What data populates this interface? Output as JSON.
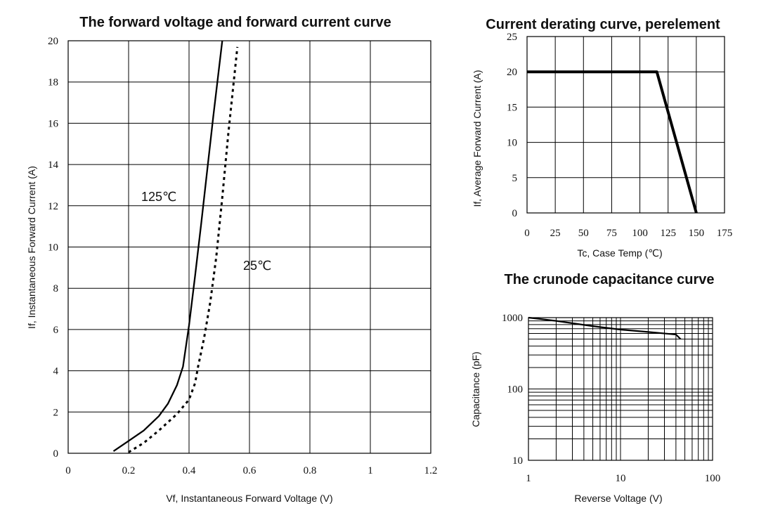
{
  "chart_data": [
    {
      "type": "line",
      "title": "The forward voltage and forward current curve",
      "xlabel": "Vf, Instantaneous Forward Voltage (V)",
      "ylabel": "If, Instantaneous Forward Current (A)",
      "xlim": [
        0,
        1.2
      ],
      "ylim": [
        0,
        20
      ],
      "x_ticks": [
        "0",
        "0.2",
        "0.4",
        "0.6",
        "0.8",
        "1",
        "1.2"
      ],
      "y_ticks": [
        "0",
        "2",
        "4",
        "6",
        "8",
        "10",
        "12",
        "14",
        "16",
        "18",
        "20"
      ],
      "grid": true,
      "annotations": [
        "125℃",
        "25℃"
      ],
      "series": [
        {
          "name": "125℃",
          "style": "solid",
          "points": [
            [
              0.15,
              0.1
            ],
            [
              0.2,
              0.6
            ],
            [
              0.25,
              1.1
            ],
            [
              0.3,
              1.8
            ],
            [
              0.33,
              2.4
            ],
            [
              0.36,
              3.3
            ],
            [
              0.38,
              4.2
            ],
            [
              0.4,
              6.2
            ],
            [
              0.42,
              8.6
            ],
            [
              0.44,
              11.1
            ],
            [
              0.46,
              13.7
            ],
            [
              0.48,
              16.3
            ],
            [
              0.51,
              20
            ]
          ]
        },
        {
          "name": "25℃",
          "style": "dotted",
          "points": [
            [
              0.2,
              0.05
            ],
            [
              0.25,
              0.5
            ],
            [
              0.3,
              1.1
            ],
            [
              0.36,
              1.9
            ],
            [
              0.4,
              2.6
            ],
            [
              0.42,
              3.4
            ],
            [
              0.43,
              4.2
            ],
            [
              0.45,
              5.6
            ],
            [
              0.47,
              7.3
            ],
            [
              0.49,
              9.5
            ],
            [
              0.51,
              12.4
            ],
            [
              0.53,
              15.5
            ],
            [
              0.56,
              19.7
            ]
          ]
        }
      ]
    },
    {
      "type": "line",
      "title": "Current derating curve, perelement",
      "xlabel": "Tc, Case Temp (℃)",
      "ylabel": "If, Average Forward Current (A)",
      "xlim": [
        0,
        175
      ],
      "ylim": [
        0,
        25
      ],
      "x_ticks": [
        "0",
        "25",
        "50",
        "75",
        "100",
        "125",
        "150",
        "175"
      ],
      "y_ticks": [
        "0",
        "5",
        "10",
        "15",
        "20",
        "25"
      ],
      "grid": true,
      "series": [
        {
          "style": "solid",
          "points": [
            [
              0,
              20
            ],
            [
              115,
              20
            ],
            [
              150,
              0
            ]
          ]
        }
      ]
    },
    {
      "type": "line",
      "title": "The crunode capacitance curve",
      "xlabel": "Reverse Voltage (V)",
      "ylabel": "Capacitance (pF)",
      "xlim": [
        1,
        100
      ],
      "ylim": [
        10,
        1000
      ],
      "xscale": "log",
      "yscale": "log",
      "x_ticks": [
        "1",
        "10",
        "100"
      ],
      "y_ticks": [
        "10",
        "100",
        "1000"
      ],
      "grid": true,
      "series": [
        {
          "style": "solid",
          "points": [
            [
              1,
              1000
            ],
            [
              2,
              900
            ],
            [
              5,
              760
            ],
            [
              10,
              680
            ],
            [
              20,
              630
            ],
            [
              35,
              590
            ],
            [
              40,
              580
            ],
            [
              45,
              500
            ]
          ]
        }
      ]
    }
  ]
}
